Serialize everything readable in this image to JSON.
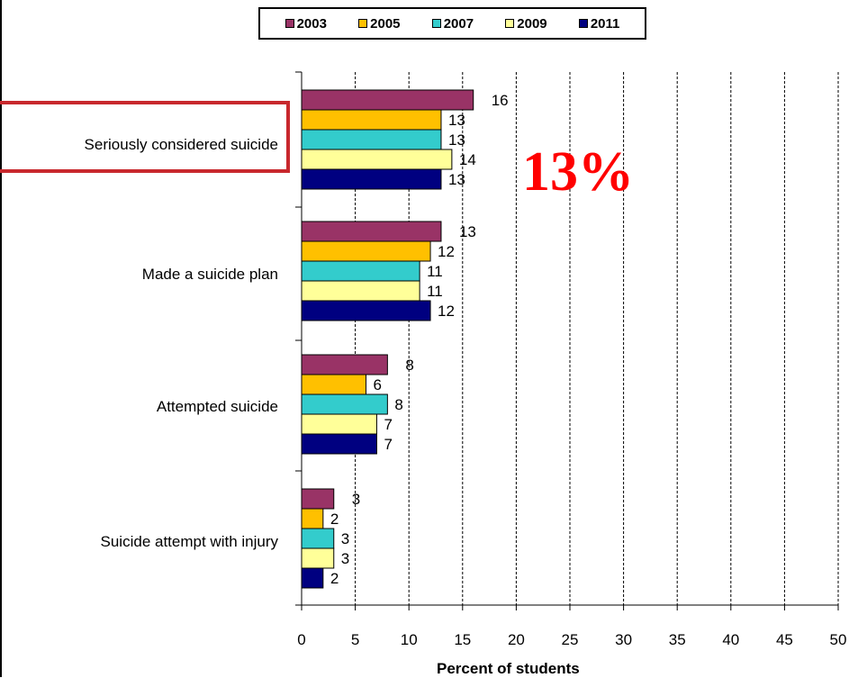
{
  "chart_data": {
    "type": "bar",
    "orientation": "horizontal",
    "categories": [
      "Seriously considered suicide",
      "Made a suicide plan",
      "Attempted suicide",
      "Suicide attempt with injury"
    ],
    "series": [
      {
        "name": "2003",
        "color": "#993366",
        "values": [
          16,
          13,
          8,
          3
        ]
      },
      {
        "name": "2005",
        "color": "#ffc000",
        "values": [
          13,
          12,
          6,
          2
        ]
      },
      {
        "name": "2007",
        "color": "#33cccc",
        "values": [
          13,
          11,
          8,
          3
        ]
      },
      {
        "name": "2009",
        "color": "#ffff99",
        "values": [
          14,
          11,
          7,
          3
        ]
      },
      {
        "name": "2011",
        "color": "#000080",
        "values": [
          13,
          12,
          7,
          2
        ]
      }
    ],
    "xlabel": "Percent of students",
    "xlim": [
      0,
      50
    ],
    "xticks": [
      "0",
      "5",
      "10",
      "15",
      "20",
      "25",
      "30",
      "35",
      "40",
      "45",
      "50"
    ],
    "grid": "vertical dashed",
    "legend_position": "top",
    "annotation": "13%",
    "highlighted_category": "Seriously considered suicide",
    "highlight_color": "#c8282d",
    "annotation_color": "#ff0000"
  }
}
